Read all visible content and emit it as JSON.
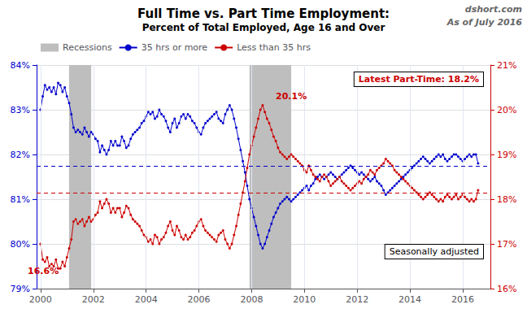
{
  "chart_data": {
    "type": "line",
    "title": "Full Time vs. Part Time Employment:",
    "subtitle": "Percent of Total Employed, Age 16 and Over",
    "watermark": [
      "dshort.com",
      "As of July 2016"
    ],
    "x": [
      2000,
      2000.0833333333333,
      2000.1666666666667,
      2000.25,
      2000.3333333333333,
      2000.4166666666667,
      2000.5,
      2000.5833333333333,
      2000.6666666666667,
      2000.75,
      2000.8333333333333,
      2000.9166666666667,
      2001,
      2001.0833333333333,
      2001.1666666666667,
      2001.25,
      2001.3333333333333,
      2001.4166666666667,
      2001.5,
      2001.5833333333333,
      2001.6666666666667,
      2001.75,
      2001.8333333333333,
      2001.9166666666667,
      2002,
      2002.0833333333333,
      2002.1666666666667,
      2002.25,
      2002.3333333333333,
      2002.4166666666667,
      2002.5,
      2002.5833333333333,
      2002.6666666666667,
      2002.75,
      2002.8333333333333,
      2002.9166666666667,
      2003,
      2003.0833333333333,
      2003.1666666666667,
      2003.25,
      2003.3333333333333,
      2003.4166666666667,
      2003.5,
      2003.5833333333333,
      2003.6666666666667,
      2003.75,
      2003.8333333333333,
      2003.9166666666667,
      2004,
      2004.0833333333333,
      2004.1666666666667,
      2004.25,
      2004.3333333333333,
      2004.4166666666667,
      2004.5,
      2004.5833333333333,
      2004.6666666666667,
      2004.75,
      2004.8333333333333,
      2004.9166666666667,
      2005,
      2005.0833333333333,
      2005.1666666666667,
      2005.25,
      2005.3333333333333,
      2005.4166666666667,
      2005.5,
      2005.5833333333333,
      2005.6666666666667,
      2005.75,
      2005.8333333333333,
      2005.9166666666667,
      2006,
      2006.0833333333333,
      2006.1666666666667,
      2006.25,
      2006.3333333333333,
      2006.4166666666667,
      2006.5,
      2006.5833333333333,
      2006.6666666666667,
      2006.75,
      2006.8333333333333,
      2006.9166666666667,
      2007,
      2007.0833333333333,
      2007.1666666666667,
      2007.25,
      2007.3333333333333,
      2007.4166666666667,
      2007.5,
      2007.5833333333333,
      2007.6666666666667,
      2007.75,
      2007.8333333333333,
      2007.9166666666667,
      2008,
      2008.0833333333333,
      2008.1666666666667,
      2008.25,
      2008.3333333333333,
      2008.4166666666667,
      2008.5,
      2008.5833333333333,
      2008.6666666666667,
      2008.75,
      2008.8333333333333,
      2008.9166666666667,
      2009,
      2009.0833333333333,
      2009.1666666666667,
      2009.25,
      2009.3333333333333,
      2009.4166666666667,
      2009.5,
      2009.5833333333333,
      2009.6666666666667,
      2009.75,
      2009.8333333333333,
      2009.9166666666667,
      2010,
      2010.0833333333333,
      2010.1666666666667,
      2010.25,
      2010.3333333333333,
      2010.4166666666667,
      2010.5,
      2010.5833333333333,
      2010.6666666666667,
      2010.75,
      2010.8333333333333,
      2010.9166666666667,
      2011,
      2011.0833333333333,
      2011.1666666666667,
      2011.25,
      2011.3333333333333,
      2011.4166666666667,
      2011.5,
      2011.5833333333333,
      2011.6666666666667,
      2011.75,
      2011.8333333333333,
      2011.9166666666667,
      2012,
      2012.0833333333333,
      2012.1666666666667,
      2012.25,
      2012.3333333333333,
      2012.4166666666667,
      2012.5,
      2012.5833333333333,
      2012.6666666666667,
      2012.75,
      2012.8333333333333,
      2012.9166666666667,
      2013,
      2013.0833333333333,
      2013.1666666666667,
      2013.25,
      2013.3333333333333,
      2013.4166666666667,
      2013.5,
      2013.5833333333333,
      2013.6666666666667,
      2013.75,
      2013.8333333333333,
      2013.9166666666667,
      2014,
      2014.0833333333333,
      2014.1666666666667,
      2014.25,
      2014.3333333333333,
      2014.4166666666667,
      2014.5,
      2014.5833333333333,
      2014.6666666666667,
      2014.75,
      2014.8333333333333,
      2014.9166666666667,
      2015,
      2015.0833333333333,
      2015.1666666666667,
      2015.25,
      2015.3333333333333,
      2015.4166666666667,
      2015.5,
      2015.5833333333333,
      2015.6666666666667,
      2015.75,
      2015.8333333333333,
      2015.9166666666667,
      2016,
      2016.0833333333333,
      2016.1666666666667,
      2016.25,
      2016.3333333333333,
      2016.4166666666667,
      2016.5,
      2016.5833333333333
    ],
    "series": [
      {
        "name": "35 hrs or more",
        "color": "#0000CC",
        "marker": "circle",
        "values": [
          83.0,
          83.3,
          83.55,
          83.45,
          83.5,
          83.4,
          83.5,
          83.35,
          83.6,
          83.55,
          83.4,
          83.5,
          83.3,
          83.15,
          82.9,
          82.6,
          82.5,
          82.55,
          82.5,
          82.45,
          82.6,
          82.5,
          82.4,
          82.5,
          82.45,
          82.35,
          82.3,
          82.05,
          82.2,
          82.1,
          82.0,
          82.1,
          82.3,
          82.2,
          82.3,
          82.2,
          82.2,
          82.4,
          82.3,
          82.15,
          82.2,
          82.35,
          82.45,
          82.5,
          82.55,
          82.6,
          82.7,
          82.75,
          82.85,
          82.95,
          82.9,
          82.95,
          82.8,
          82.85,
          83.0,
          82.9,
          82.85,
          82.75,
          82.6,
          82.5,
          82.7,
          82.8,
          82.6,
          82.7,
          82.85,
          82.9,
          82.8,
          82.9,
          82.85,
          82.75,
          82.7,
          82.6,
          82.5,
          82.45,
          82.6,
          82.7,
          82.75,
          82.8,
          82.85,
          82.9,
          82.95,
          82.8,
          82.75,
          82.7,
          82.9,
          83.0,
          83.1,
          83.0,
          82.8,
          82.6,
          82.35,
          82.1,
          81.85,
          81.6,
          81.3,
          81.0,
          80.8,
          80.6,
          80.4,
          80.2,
          80.0,
          79.9,
          80.0,
          80.15,
          80.3,
          80.45,
          80.6,
          80.7,
          80.8,
          80.9,
          80.95,
          81.0,
          81.05,
          81.0,
          80.95,
          81.0,
          81.05,
          81.1,
          81.15,
          81.2,
          81.25,
          81.3,
          81.2,
          81.3,
          81.35,
          81.45,
          81.5,
          81.55,
          81.5,
          81.45,
          81.5,
          81.55,
          81.6,
          81.55,
          81.5,
          81.45,
          81.5,
          81.55,
          81.6,
          81.65,
          81.7,
          81.75,
          81.7,
          81.65,
          81.6,
          81.55,
          81.6,
          81.55,
          81.5,
          81.45,
          81.4,
          81.45,
          81.5,
          81.4,
          81.35,
          81.3,
          81.2,
          81.1,
          81.15,
          81.2,
          81.25,
          81.3,
          81.35,
          81.4,
          81.45,
          81.5,
          81.55,
          81.6,
          81.65,
          81.7,
          81.75,
          81.8,
          81.85,
          81.9,
          81.95,
          81.9,
          81.85,
          81.8,
          81.85,
          81.9,
          81.95,
          82.0,
          81.95,
          82.0,
          81.9,
          81.85,
          81.9,
          81.95,
          82.0,
          82.0,
          81.95,
          81.9,
          81.85,
          81.9,
          81.95,
          82.0,
          81.95,
          82.0,
          82.0,
          81.8
        ]
      },
      {
        "name": "Less than 35 hrs",
        "color": "#CC0000",
        "marker": "circle",
        "axis": "y2",
        "values": [
          17.0,
          16.65,
          16.6,
          16.7,
          16.5,
          16.55,
          16.5,
          16.65,
          16.45,
          16.45,
          16.6,
          16.5,
          16.7,
          16.9,
          17.1,
          17.5,
          17.55,
          17.45,
          17.5,
          17.55,
          17.4,
          17.5,
          17.6,
          17.5,
          17.55,
          17.65,
          17.7,
          17.95,
          17.8,
          17.9,
          18.0,
          17.9,
          17.7,
          17.8,
          17.7,
          17.8,
          17.8,
          17.6,
          17.7,
          17.85,
          17.8,
          17.65,
          17.55,
          17.5,
          17.45,
          17.4,
          17.3,
          17.2,
          17.15,
          17.05,
          17.1,
          17.0,
          17.2,
          17.15,
          17.0,
          17.1,
          17.15,
          17.25,
          17.4,
          17.5,
          17.3,
          17.2,
          17.4,
          17.3,
          17.15,
          17.1,
          17.2,
          17.1,
          17.15,
          17.25,
          17.3,
          17.4,
          17.5,
          17.55,
          17.4,
          17.3,
          17.25,
          17.2,
          17.15,
          17.1,
          17.05,
          17.2,
          17.25,
          17.3,
          17.1,
          17.0,
          16.9,
          17.0,
          17.2,
          17.4,
          17.65,
          17.9,
          18.15,
          18.4,
          18.7,
          19.0,
          19.2,
          19.4,
          19.6,
          19.8,
          20.0,
          20.1,
          19.95,
          19.8,
          19.7,
          19.55,
          19.4,
          19.3,
          19.15,
          19.05,
          19.0,
          18.95,
          18.9,
          18.95,
          19.0,
          18.95,
          18.9,
          18.85,
          18.8,
          18.75,
          18.65,
          18.6,
          18.75,
          18.65,
          18.55,
          18.5,
          18.45,
          18.4,
          18.5,
          18.55,
          18.5,
          18.4,
          18.3,
          18.35,
          18.4,
          18.45,
          18.5,
          18.4,
          18.35,
          18.3,
          18.25,
          18.2,
          18.25,
          18.3,
          18.35,
          18.4,
          18.35,
          18.45,
          18.5,
          18.55,
          18.65,
          18.6,
          18.55,
          18.65,
          18.7,
          18.75,
          18.8,
          18.9,
          18.85,
          18.8,
          18.75,
          18.65,
          18.6,
          18.55,
          18.5,
          18.45,
          18.4,
          18.35,
          18.3,
          18.25,
          18.2,
          18.15,
          18.1,
          18.05,
          18.0,
          18.05,
          18.1,
          18.15,
          18.1,
          18.05,
          18.0,
          17.95,
          18.0,
          17.95,
          18.05,
          18.1,
          18.05,
          18.0,
          18.05,
          18.1,
          18.0,
          18.05,
          18.1,
          18.05,
          18.0,
          17.95,
          18.0,
          17.95,
          18.0,
          18.2
        ]
      }
    ],
    "xlim": [
      1999.85,
      2017.05
    ],
    "xticks": [
      2000,
      2002,
      2004,
      2006,
      2008,
      2010,
      2012,
      2014,
      2016
    ],
    "ylim": [
      79,
      84
    ],
    "yticks": [
      {
        "value": 79,
        "label": "79%"
      },
      {
        "value": 80,
        "label": "80%"
      },
      {
        "value": 81,
        "label": "81%"
      },
      {
        "value": 82,
        "label": "82%"
      },
      {
        "value": 83,
        "label": "83%"
      },
      {
        "value": 84,
        "label": "84%"
      }
    ],
    "y2lim": [
      16,
      21
    ],
    "y2ticks": [
      {
        "value": 16,
        "label": "16%"
      },
      {
        "value": 17,
        "label": "17%"
      },
      {
        "value": 18,
        "label": "18%"
      },
      {
        "value": 19,
        "label": "19%"
      },
      {
        "value": 20,
        "label": "20%"
      },
      {
        "value": 21,
        "label": "21%"
      }
    ],
    "grid": true,
    "legend": "upper left",
    "shaded_ranges": {
      "name": "Recessions",
      "color": "#BEBEBE",
      "ranges": [
        [
          2001.08,
          2001.92
        ],
        [
          2007.92,
          2009.5
        ]
      ]
    },
    "reference_lines": [
      {
        "value": 81.75,
        "axis": "y",
        "color": "#0000CC",
        "line_style": "dashed"
      },
      {
        "value": 18.15,
        "axis": "y2",
        "color": "#CC0000",
        "line_style": "dashed"
      }
    ],
    "annotations": [
      {
        "text": "20.1%",
        "x": 2009.5,
        "y": 20.1,
        "axis": "y2"
      },
      {
        "text": "16.6%",
        "x": 2000.1,
        "y": 16.6,
        "axis": "y2"
      }
    ],
    "text_boxes": [
      {
        "text": "Latest Part-Time: 18.2%",
        "color": "#CC0000"
      },
      {
        "text": "Seasonally adjusted"
      }
    ]
  }
}
